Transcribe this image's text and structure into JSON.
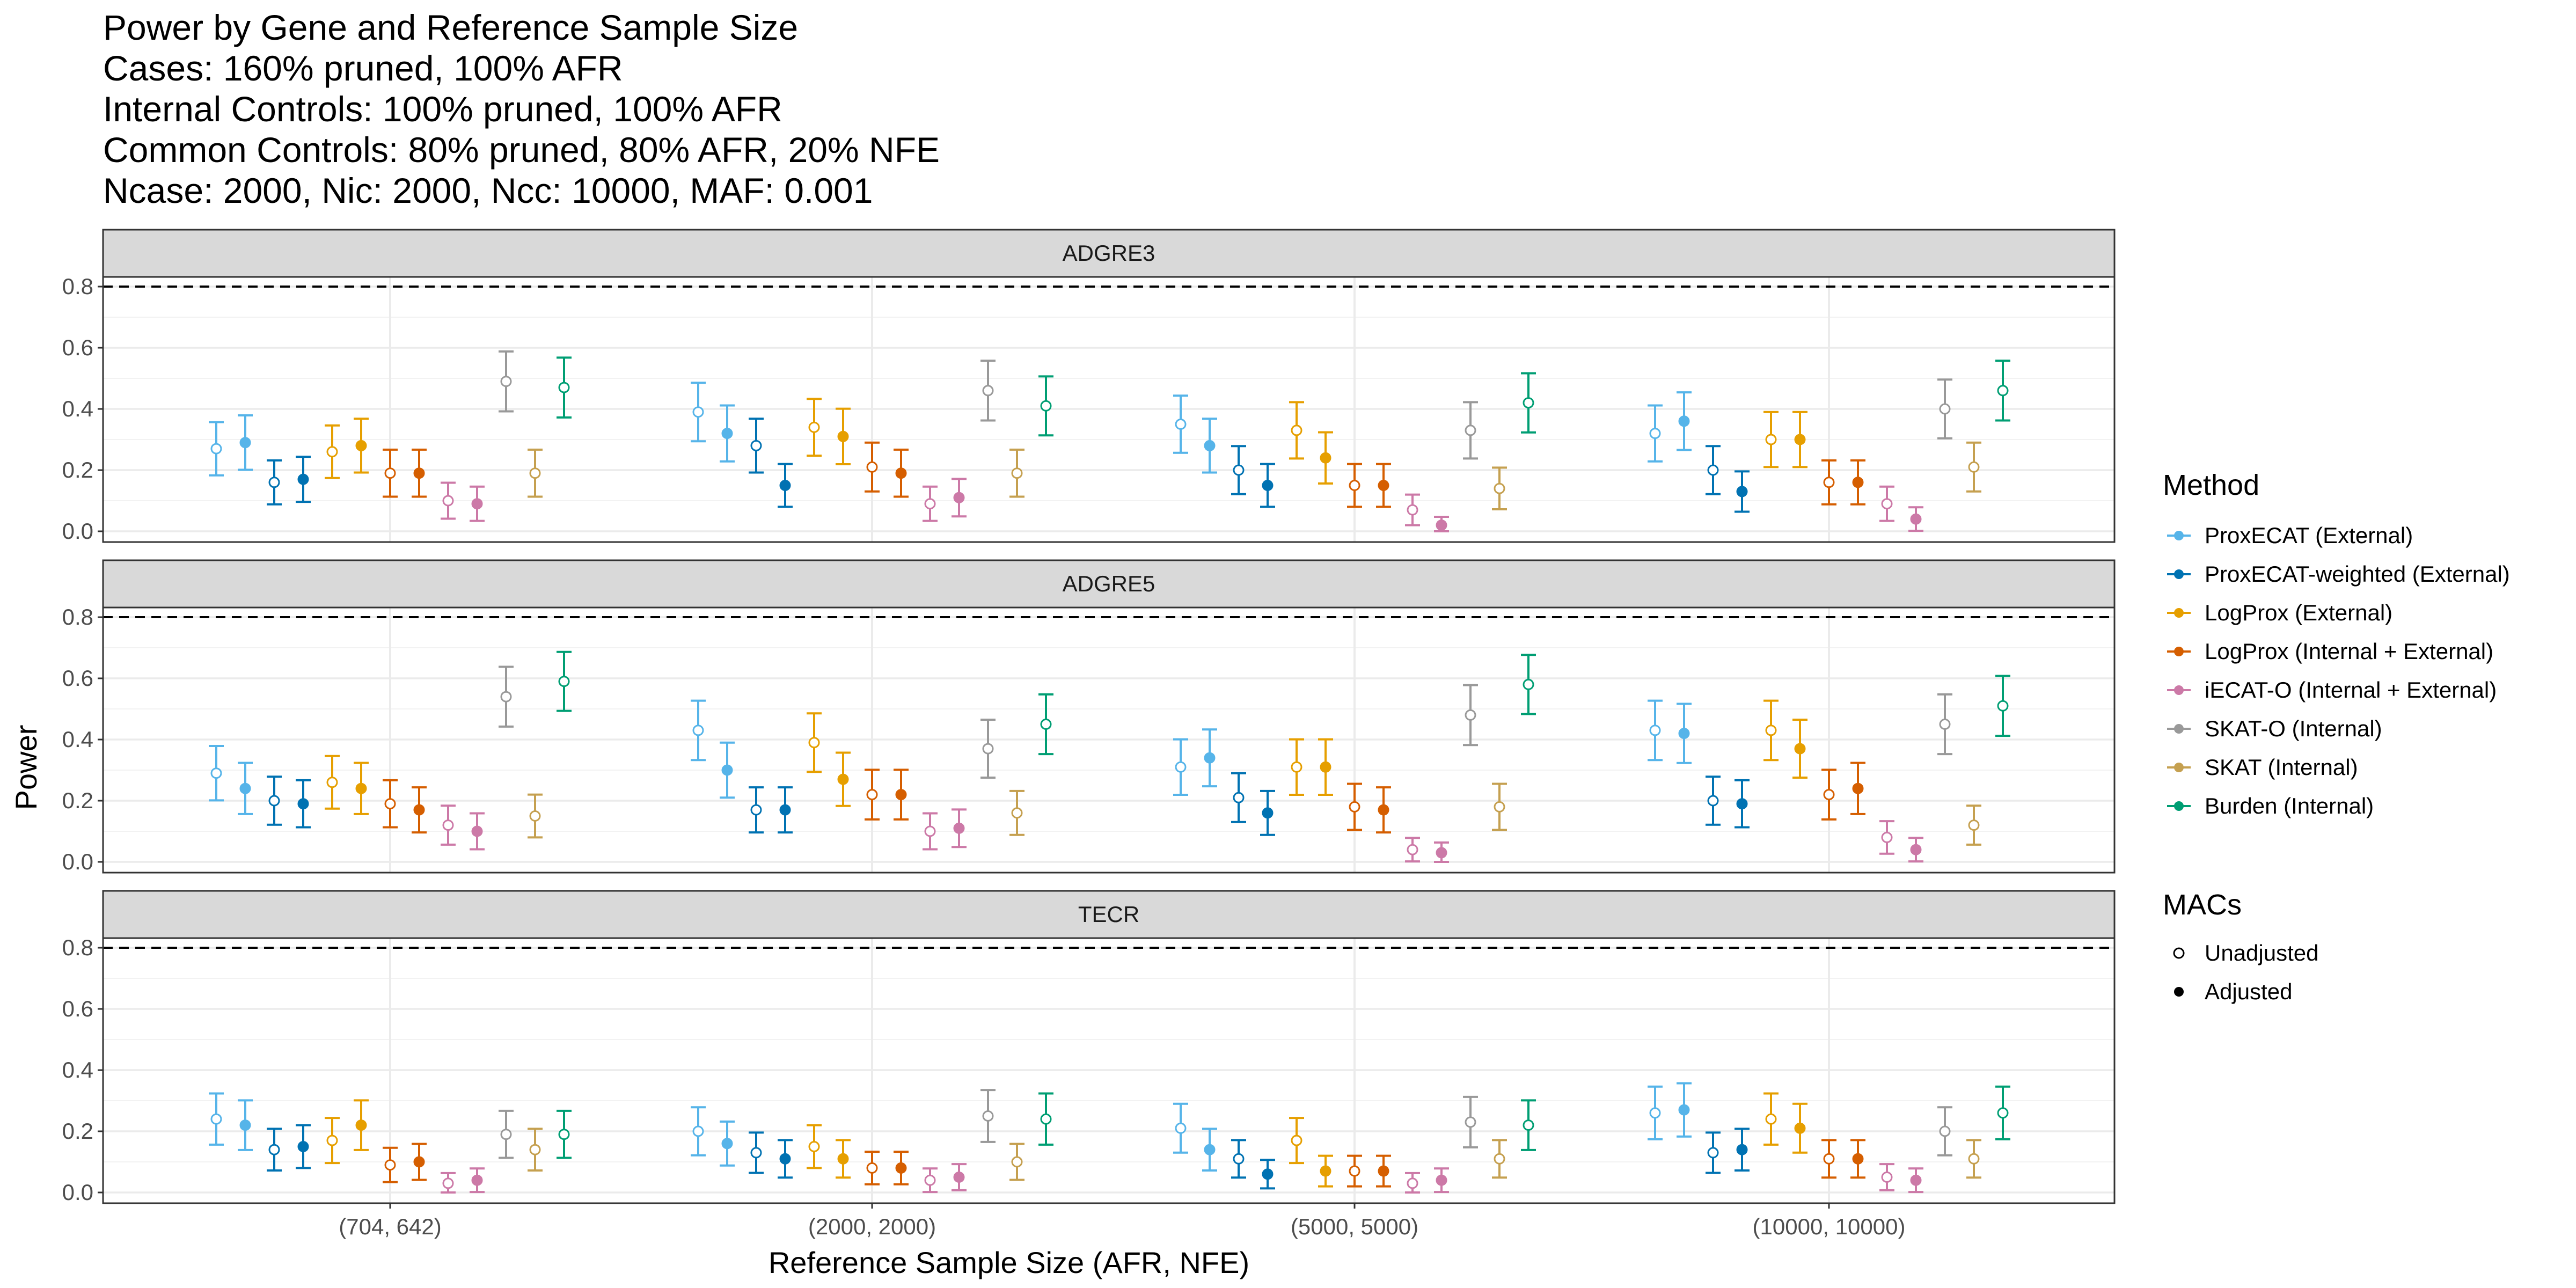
{
  "chart_data": {
    "type": "scatter",
    "title_lines": [
      "Power by Gene and Reference Sample Size",
      "Cases: 160% pruned, 100% AFR",
      "Internal Controls: 100% pruned, 100% AFR",
      "Common Controls: 80% pruned, 80% AFR, 20% NFE",
      "Ncase: 2000, Nic: 2000, Ncc: 10000, MAF: 0.001"
    ],
    "xlabel": "Reference Sample Size (AFR, NFE)",
    "ylabel": "Power",
    "categories": [
      "(704, 642)",
      "(2000, 2000)",
      "(5000, 5000)",
      "(10000, 10000)"
    ],
    "ylim": [
      -0.02,
      0.84
    ],
    "yticks": [
      0.0,
      0.2,
      0.4,
      0.6,
      0.8
    ],
    "ytick_labels": [
      "0.0",
      "0.2",
      "0.4",
      "0.6",
      "0.8"
    ],
    "reference_line": 0.8,
    "grid": true,
    "legend_position": "right",
    "methods": [
      {
        "name": "ProxECAT (External)",
        "color": "#56B4E9"
      },
      {
        "name": "ProxECAT-weighted (External)",
        "color": "#0072B2"
      },
      {
        "name": "LogProx (External)",
        "color": "#E69F00"
      },
      {
        "name": "LogProx (Internal + External)",
        "color": "#D55E00"
      },
      {
        "name": "iECAT-O (Internal + External)",
        "color": "#CC79A7"
      },
      {
        "name": "SKAT-O (Internal)",
        "color": "#999999"
      },
      {
        "name": "SKAT (Internal)",
        "color": "#C5A050"
      },
      {
        "name": "Burden (Internal)",
        "color": "#009E73"
      }
    ],
    "legend_method_title": "Method",
    "legend_mac_title": "MACs",
    "mac_levels": [
      "Unadjusted",
      "Adjusted"
    ],
    "panels": [
      {
        "gene": "ADGRE3",
        "series": [
          {
            "method": "ProxECAT (External)",
            "unadjusted": [
              0.27,
              0.39,
              0.35,
              0.32
            ],
            "adjusted": [
              0.29,
              0.32,
              0.28,
              0.36
            ]
          },
          {
            "method": "ProxECAT-weighted (External)",
            "unadjusted": [
              0.16,
              0.28,
              0.2,
              0.2
            ],
            "adjusted": [
              0.17,
              0.15,
              0.15,
              0.13
            ]
          },
          {
            "method": "LogProx (External)",
            "unadjusted": [
              0.26,
              0.34,
              0.33,
              0.3
            ],
            "adjusted": [
              0.28,
              0.31,
              0.24,
              0.3
            ]
          },
          {
            "method": "LogProx (Internal + External)",
            "unadjusted": [
              0.19,
              0.21,
              0.15,
              0.16
            ],
            "adjusted": [
              0.19,
              0.19,
              0.15,
              0.16
            ]
          },
          {
            "method": "iECAT-O (Internal + External)",
            "unadjusted": [
              0.1,
              0.09,
              0.07,
              0.09
            ],
            "adjusted": [
              0.09,
              0.11,
              0.02,
              0.04
            ]
          },
          {
            "method": "SKAT-O (Internal)",
            "unadjusted": [
              0.49,
              0.46,
              0.33,
              0.4
            ],
            "adjusted": null
          },
          {
            "method": "SKAT (Internal)",
            "unadjusted": [
              0.19,
              0.19,
              0.14,
              0.21
            ],
            "adjusted": null
          },
          {
            "method": "Burden (Internal)",
            "unadjusted": [
              0.47,
              0.41,
              0.42,
              0.46
            ],
            "adjusted": null
          }
        ]
      },
      {
        "gene": "ADGRE5",
        "series": [
          {
            "method": "ProxECAT (External)",
            "unadjusted": [
              0.29,
              0.43,
              0.31,
              0.43
            ],
            "adjusted": [
              0.24,
              0.3,
              0.34,
              0.42
            ]
          },
          {
            "method": "ProxECAT-weighted (External)",
            "unadjusted": [
              0.2,
              0.17,
              0.21,
              0.2
            ],
            "adjusted": [
              0.19,
              0.17,
              0.16,
              0.19
            ]
          },
          {
            "method": "LogProx (External)",
            "unadjusted": [
              0.26,
              0.39,
              0.31,
              0.43
            ],
            "adjusted": [
              0.24,
              0.27,
              0.31,
              0.37
            ]
          },
          {
            "method": "LogProx (Internal + External)",
            "unadjusted": [
              0.19,
              0.22,
              0.18,
              0.22
            ],
            "adjusted": [
              0.17,
              0.22,
              0.17,
              0.24
            ]
          },
          {
            "method": "iECAT-O (Internal + External)",
            "unadjusted": [
              0.12,
              0.1,
              0.04,
              0.08
            ],
            "adjusted": [
              0.1,
              0.11,
              0.03,
              0.04
            ]
          },
          {
            "method": "SKAT-O (Internal)",
            "unadjusted": [
              0.54,
              0.37,
              0.48,
              0.45
            ],
            "adjusted": null
          },
          {
            "method": "SKAT (Internal)",
            "unadjusted": [
              0.15,
              0.16,
              0.18,
              0.12
            ],
            "adjusted": null
          },
          {
            "method": "Burden (Internal)",
            "unadjusted": [
              0.59,
              0.45,
              0.58,
              0.51
            ],
            "adjusted": null
          }
        ]
      },
      {
        "gene": "TECR",
        "series": [
          {
            "method": "ProxECAT (External)",
            "unadjusted": [
              0.24,
              0.2,
              0.21,
              0.26
            ],
            "adjusted": [
              0.22,
              0.16,
              0.14,
              0.27
            ]
          },
          {
            "method": "ProxECAT-weighted (External)",
            "unadjusted": [
              0.14,
              0.13,
              0.11,
              0.13
            ],
            "adjusted": [
              0.15,
              0.11,
              0.06,
              0.14
            ]
          },
          {
            "method": "LogProx (External)",
            "unadjusted": [
              0.17,
              0.15,
              0.17,
              0.24
            ],
            "adjusted": [
              0.22,
              0.11,
              0.07,
              0.21
            ]
          },
          {
            "method": "LogProx (Internal + External)",
            "unadjusted": [
              0.09,
              0.08,
              0.07,
              0.11
            ],
            "adjusted": [
              0.1,
              0.08,
              0.07,
              0.11
            ]
          },
          {
            "method": "iECAT-O (Internal + External)",
            "unadjusted": [
              0.03,
              0.04,
              0.03,
              0.05
            ],
            "adjusted": [
              0.04,
              0.05,
              0.04,
              0.04
            ]
          },
          {
            "method": "SKAT-O (Internal)",
            "unadjusted": [
              0.19,
              0.25,
              0.23,
              0.2
            ],
            "adjusted": null
          },
          {
            "method": "SKAT (Internal)",
            "unadjusted": [
              0.14,
              0.1,
              0.11,
              0.11
            ],
            "adjusted": null
          },
          {
            "method": "Burden (Internal)",
            "unadjusted": [
              0.19,
              0.24,
              0.22,
              0.26
            ],
            "adjusted": null
          }
        ]
      }
    ]
  }
}
